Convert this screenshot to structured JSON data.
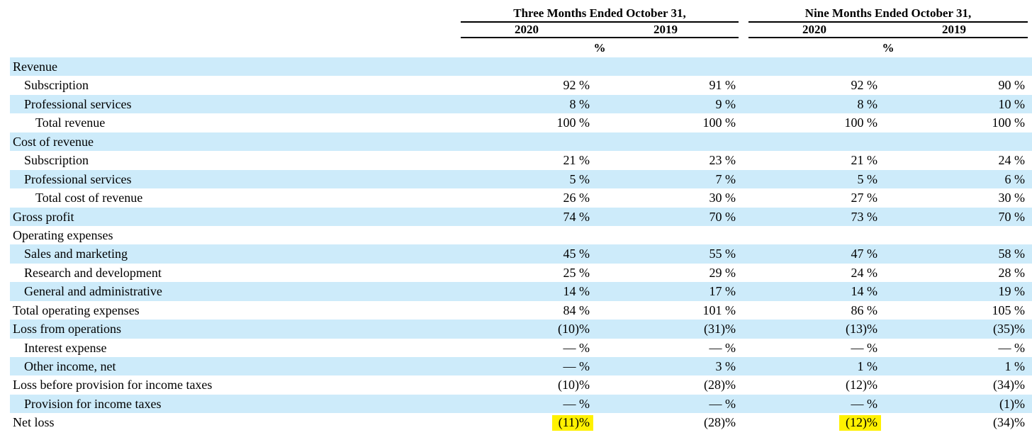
{
  "table": {
    "groups": [
      {
        "label": "Three Months Ended October 31,",
        "years": [
          "2020",
          "2019"
        ],
        "unit": "%"
      },
      {
        "label": "Nine Months Ended October 31,",
        "years": [
          "2020",
          "2019"
        ],
        "unit": "%"
      }
    ],
    "rows": [
      {
        "label": "Revenue",
        "indent": 0,
        "shaded": true,
        "values": [
          "",
          "",
          "",
          ""
        ]
      },
      {
        "label": "Subscription",
        "indent": 1,
        "shaded": false,
        "values": [
          "92 %",
          "91 %",
          "92 %",
          "90 %"
        ]
      },
      {
        "label": "Professional services",
        "indent": 1,
        "shaded": true,
        "values": [
          "8 %",
          "9 %",
          "8 %",
          "10 %"
        ]
      },
      {
        "label": "Total revenue",
        "indent": 2,
        "shaded": false,
        "values": [
          "100 %",
          "100 %",
          "100 %",
          "100 %"
        ]
      },
      {
        "label": "Cost of revenue",
        "indent": 0,
        "shaded": true,
        "values": [
          "",
          "",
          "",
          ""
        ]
      },
      {
        "label": "Subscription",
        "indent": 1,
        "shaded": false,
        "values": [
          "21 %",
          "23 %",
          "21 %",
          "24 %"
        ]
      },
      {
        "label": "Professional services",
        "indent": 1,
        "shaded": true,
        "values": [
          "5 %",
          "7 %",
          "5 %",
          "6 %"
        ]
      },
      {
        "label": "Total cost of revenue",
        "indent": 2,
        "shaded": false,
        "values": [
          "26 %",
          "30 %",
          "27 %",
          "30 %"
        ]
      },
      {
        "label": "Gross profit",
        "indent": 0,
        "shaded": true,
        "values": [
          "74 %",
          "70 %",
          "73 %",
          "70 %"
        ]
      },
      {
        "label": "Operating expenses",
        "indent": 0,
        "shaded": false,
        "values": [
          "",
          "",
          "",
          ""
        ]
      },
      {
        "label": "Sales and marketing",
        "indent": 1,
        "shaded": true,
        "values": [
          "45 %",
          "55 %",
          "47 %",
          "58 %"
        ]
      },
      {
        "label": "Research and development",
        "indent": 1,
        "shaded": false,
        "values": [
          "25 %",
          "29 %",
          "24 %",
          "28 %"
        ]
      },
      {
        "label": "General and administrative",
        "indent": 1,
        "shaded": true,
        "values": [
          "14 %",
          "17 %",
          "14 %",
          "19 %"
        ]
      },
      {
        "label": "Total operating expenses",
        "indent": 0,
        "shaded": false,
        "values": [
          "84 %",
          "101 %",
          "86 %",
          "105 %"
        ]
      },
      {
        "label": "Loss from operations",
        "indent": 0,
        "shaded": true,
        "values": [
          "(10)%",
          "(31)%",
          "(13)%",
          "(35)%"
        ]
      },
      {
        "label": "Interest expense",
        "indent": 1,
        "shaded": false,
        "values": [
          "— %",
          "— %",
          "— %",
          "— %"
        ]
      },
      {
        "label": "Other income, net",
        "indent": 1,
        "shaded": true,
        "values": [
          "— %",
          "3 %",
          "1 %",
          "1 %"
        ]
      },
      {
        "label": "Loss before provision for income taxes",
        "indent": 0,
        "shaded": false,
        "values": [
          "(10)%",
          "(28)%",
          "(12)%",
          "(34)%"
        ]
      },
      {
        "label": "Provision for income taxes",
        "indent": 1,
        "shaded": true,
        "values": [
          "— %",
          "— %",
          "— %",
          "(1)%"
        ]
      },
      {
        "label": "Net loss",
        "indent": 0,
        "shaded": false,
        "values": [
          "(11)%",
          "(28)%",
          "(12)%",
          "(34)%"
        ],
        "highlight": [
          true,
          false,
          true,
          false
        ]
      }
    ]
  },
  "colors": {
    "row_stripe": "#CDEBFA",
    "highlight_marker": "#FFF100",
    "rule": "#000000",
    "text": "#000000"
  }
}
